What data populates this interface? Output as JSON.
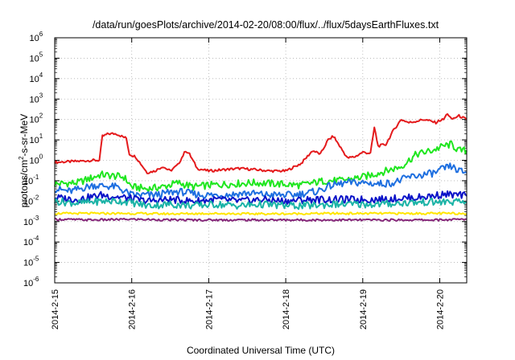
{
  "chart_data": {
    "type": "line",
    "title": "/data/run/goesPlots/archive/2014-02-20/08:00/flux/../flux/5daysEarthFluxes.txt",
    "xlabel": "Coordinated Universal Time (UTC)",
    "ylabel": {
      "base": "protons/cm",
      "sup": "2",
      "rest": "-s-sr-MeV"
    },
    "yscale": "log",
    "ylim_exp": [
      -6,
      6
    ],
    "yticks": [
      {
        "base": "10",
        "exp": "-6"
      },
      {
        "base": "10",
        "exp": "-5"
      },
      {
        "base": "10",
        "exp": "-4"
      },
      {
        "base": "10",
        "exp": "-3"
      },
      {
        "base": "10",
        "exp": "-2"
      },
      {
        "base": "10",
        "exp": "-1"
      },
      {
        "base": "10",
        "exp": "0"
      },
      {
        "base": "10",
        "exp": "1"
      },
      {
        "base": "10",
        "exp": "2"
      },
      {
        "base": "10",
        "exp": "3"
      },
      {
        "base": "10",
        "exp": "4"
      },
      {
        "base": "10",
        "exp": "5"
      },
      {
        "base": "10",
        "exp": "6"
      }
    ],
    "xticks": [
      "2014-2-15",
      "2014-2-16",
      "2014-2-17",
      "2014-2-18",
      "2014-2-19",
      "2014-2-20"
    ],
    "xlim_days": [
      0,
      5.35
    ],
    "grid": true,
    "series": [
      {
        "color": "#e41a1c",
        "points": [
          [
            0,
            0.8
          ],
          [
            0.3,
            0.9
          ],
          [
            0.5,
            1.0
          ],
          [
            0.58,
            1.0
          ],
          [
            0.62,
            15
          ],
          [
            0.7,
            20
          ],
          [
            0.8,
            20
          ],
          [
            0.87,
            15
          ],
          [
            0.93,
            12
          ],
          [
            0.97,
            2
          ],
          [
            1.05,
            1.5
          ],
          [
            1.2,
            0.25
          ],
          [
            1.3,
            0.3
          ],
          [
            1.4,
            0.5
          ],
          [
            1.5,
            0.3
          ],
          [
            1.6,
            0.6
          ],
          [
            1.7,
            3
          ],
          [
            1.75,
            2
          ],
          [
            1.85,
            0.4
          ],
          [
            2.0,
            0.3
          ],
          [
            2.2,
            0.35
          ],
          [
            2.4,
            0.4
          ],
          [
            2.6,
            0.35
          ],
          [
            2.8,
            0.3
          ],
          [
            3.0,
            0.3
          ],
          [
            3.2,
            0.7
          ],
          [
            3.35,
            3
          ],
          [
            3.45,
            2
          ],
          [
            3.55,
            10
          ],
          [
            3.62,
            15
          ],
          [
            3.7,
            5
          ],
          [
            3.8,
            1.3
          ],
          [
            3.9,
            1.5
          ],
          [
            4.0,
            2.5
          ],
          [
            4.1,
            2.2
          ],
          [
            4.15,
            40
          ],
          [
            4.2,
            5
          ],
          [
            4.3,
            6
          ],
          [
            4.4,
            30
          ],
          [
            4.5,
            100
          ],
          [
            4.6,
            70
          ],
          [
            4.8,
            100
          ],
          [
            4.95,
            70
          ],
          [
            5.0,
            90
          ],
          [
            5.05,
            100
          ],
          [
            5.1,
            200
          ],
          [
            5.15,
            100
          ],
          [
            5.25,
            150
          ],
          [
            5.35,
            100
          ]
        ]
      },
      {
        "color": "#1fe61f",
        "points": [
          [
            0,
            0.07
          ],
          [
            0.3,
            0.08
          ],
          [
            0.6,
            0.2
          ],
          [
            0.9,
            0.15
          ],
          [
            1.0,
            0.05
          ],
          [
            1.2,
            0.04
          ],
          [
            1.4,
            0.05
          ],
          [
            1.6,
            0.08
          ],
          [
            1.8,
            0.05
          ],
          [
            2.0,
            0.06
          ],
          [
            2.3,
            0.07
          ],
          [
            2.6,
            0.08
          ],
          [
            2.9,
            0.07
          ],
          [
            3.2,
            0.06
          ],
          [
            3.5,
            0.1
          ],
          [
            3.7,
            0.1
          ],
          [
            4.0,
            0.15
          ],
          [
            4.3,
            0.3
          ],
          [
            4.5,
            0.5
          ],
          [
            4.7,
            2
          ],
          [
            4.9,
            3
          ],
          [
            5.05,
            5
          ],
          [
            5.15,
            6
          ],
          [
            5.25,
            3
          ],
          [
            5.35,
            3
          ]
        ]
      },
      {
        "color": "#1e6fe0",
        "points": [
          [
            0,
            0.04
          ],
          [
            0.2,
            0.03
          ],
          [
            0.5,
            0.06
          ],
          [
            0.8,
            0.05
          ],
          [
            1.0,
            0.02
          ],
          [
            1.3,
            0.02
          ],
          [
            1.6,
            0.03
          ],
          [
            1.9,
            0.02
          ],
          [
            2.2,
            0.02
          ],
          [
            2.5,
            0.025
          ],
          [
            2.8,
            0.02
          ],
          [
            3.1,
            0.02
          ],
          [
            3.4,
            0.03
          ],
          [
            3.6,
            0.06
          ],
          [
            3.8,
            0.08
          ],
          [
            4.0,
            0.08
          ],
          [
            4.2,
            0.07
          ],
          [
            4.4,
            0.08
          ],
          [
            4.6,
            0.15
          ],
          [
            4.8,
            0.2
          ],
          [
            4.95,
            0.25
          ],
          [
            5.05,
            0.4
          ],
          [
            5.15,
            0.5
          ],
          [
            5.25,
            0.3
          ],
          [
            5.35,
            0.25
          ]
        ]
      },
      {
        "color": "#0a12c8",
        "points": [
          [
            0,
            0.015
          ],
          [
            0.3,
            0.012
          ],
          [
            0.6,
            0.02
          ],
          [
            0.9,
            0.015
          ],
          [
            1.2,
            0.01
          ],
          [
            1.5,
            0.012
          ],
          [
            1.8,
            0.01
          ],
          [
            2.1,
            0.012
          ],
          [
            2.4,
            0.01
          ],
          [
            2.7,
            0.012
          ],
          [
            3.0,
            0.01
          ],
          [
            3.3,
            0.012
          ],
          [
            3.6,
            0.012
          ],
          [
            3.9,
            0.012
          ],
          [
            4.2,
            0.012
          ],
          [
            4.5,
            0.014
          ],
          [
            4.7,
            0.015
          ],
          [
            4.9,
            0.018
          ],
          [
            5.05,
            0.022
          ],
          [
            5.2,
            0.02
          ],
          [
            5.35,
            0.018
          ]
        ]
      },
      {
        "color": "#1ab3a6",
        "points": [
          [
            0,
            0.01
          ],
          [
            0.3,
            0.008
          ],
          [
            0.6,
            0.01
          ],
          [
            0.9,
            0.01
          ],
          [
            1.2,
            0.006
          ],
          [
            1.5,
            0.007
          ],
          [
            1.8,
            0.006
          ],
          [
            2.1,
            0.007
          ],
          [
            2.4,
            0.006
          ],
          [
            2.7,
            0.007
          ],
          [
            3.0,
            0.006
          ],
          [
            3.3,
            0.006
          ],
          [
            3.6,
            0.007
          ],
          [
            3.9,
            0.007
          ],
          [
            4.2,
            0.007
          ],
          [
            4.5,
            0.008
          ],
          [
            4.8,
            0.009
          ],
          [
            5.1,
            0.009
          ],
          [
            5.35,
            0.009
          ]
        ]
      },
      {
        "color": "#ffe600",
        "points": [
          [
            0,
            0.0025
          ],
          [
            0.5,
            0.0025
          ],
          [
            1.0,
            0.0025
          ],
          [
            1.5,
            0.0024
          ],
          [
            2.0,
            0.0025
          ],
          [
            2.5,
            0.0024
          ],
          [
            3.0,
            0.0024
          ],
          [
            3.5,
            0.0025
          ],
          [
            4.0,
            0.0025
          ],
          [
            4.5,
            0.0025
          ],
          [
            5.0,
            0.0025
          ],
          [
            5.35,
            0.0025
          ]
        ]
      },
      {
        "color": "#86287a",
        "points": [
          [
            0,
            0.0013
          ],
          [
            0.5,
            0.0012
          ],
          [
            1.0,
            0.0013
          ],
          [
            1.5,
            0.0012
          ],
          [
            2.0,
            0.0012
          ],
          [
            2.5,
            0.0012
          ],
          [
            3.0,
            0.0012
          ],
          [
            3.5,
            0.0012
          ],
          [
            4.0,
            0.0012
          ],
          [
            4.5,
            0.0012
          ],
          [
            5.0,
            0.0012
          ],
          [
            5.35,
            0.0013
          ]
        ]
      }
    ]
  }
}
